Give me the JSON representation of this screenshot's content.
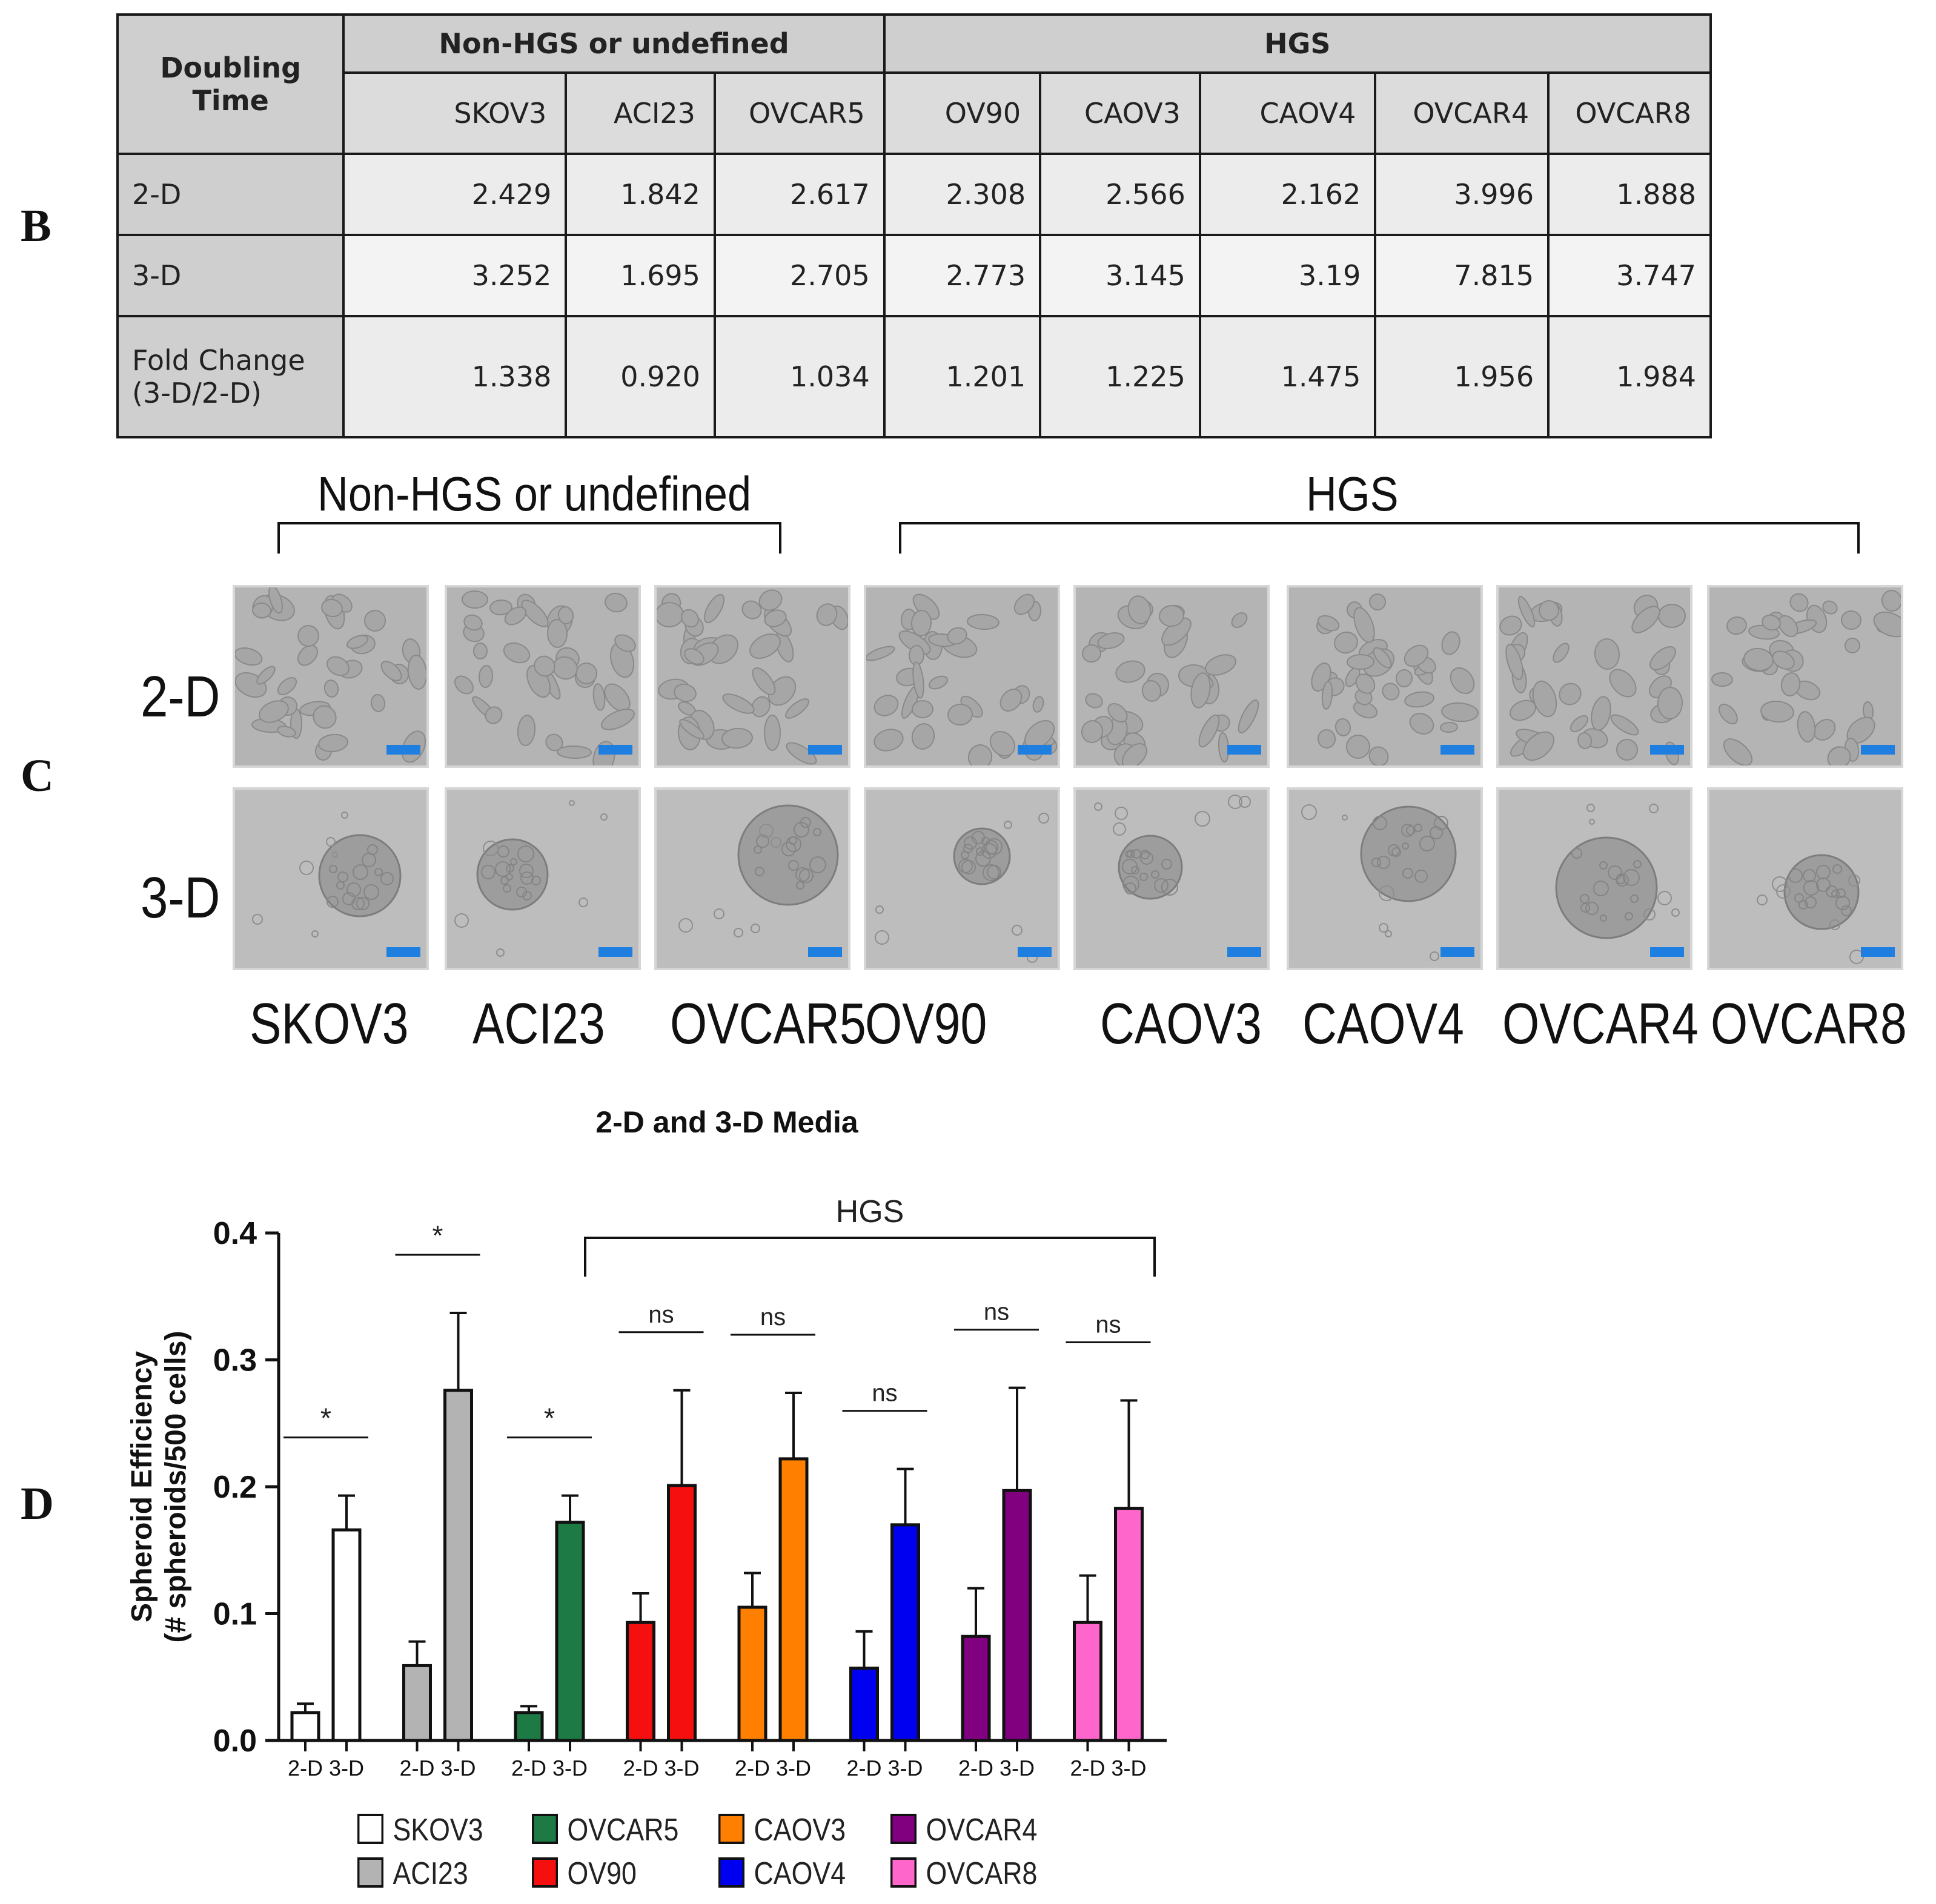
{
  "panel_labels": {
    "b": "B",
    "c": "C",
    "d": "D"
  },
  "table": {
    "corner": "Doubling Time",
    "group_headers": [
      "Non-HGS or undefined",
      "HGS"
    ],
    "columns": [
      "SKOV3",
      "ACI23",
      "OVCAR5",
      "OV90",
      "CAOV3",
      "CAOV4",
      "OVCAR4",
      "OVCAR8"
    ],
    "rows": [
      {
        "label": "2-D",
        "values": [
          "2.429",
          "1.842",
          "2.617",
          "2.308",
          "2.566",
          "2.162",
          "3.996",
          "1.888"
        ]
      },
      {
        "label": "3-D",
        "values": [
          "3.252",
          "1.695",
          "2.705",
          "2.773",
          "3.145",
          "3.19",
          "7.815",
          "3.747"
        ]
      },
      {
        "label_line1": "Fold Change",
        "label_line2": "(3-D/2-D)",
        "values": [
          "1.338",
          "0.920",
          "1.034",
          "1.201",
          "1.225",
          "1.475",
          "1.956",
          "1.984"
        ]
      }
    ]
  },
  "images": {
    "group_left": "Non-HGS or undefined",
    "group_right": "HGS",
    "row_2d": "2-D",
    "row_3d": "3-D",
    "cell_lines": [
      "SKOV3",
      "ACI23",
      "OVCAR5",
      "OV90",
      "CAOV3",
      "CAOV4",
      "OVCAR4",
      "OVCAR8"
    ],
    "scale_bar_color": "#1f7fe0"
  },
  "chart_data": {
    "type": "bar",
    "title": "2-D and 3-D Media",
    "ylabel_line1": "Spheroid Efficiency",
    "ylabel_line2": "(# spheroids/500 cells)",
    "ylim": [
      0.0,
      0.4
    ],
    "yticks": [
      "0.0",
      "0.1",
      "0.2",
      "0.3",
      "0.4"
    ],
    "ytick_values": [
      0.0,
      0.1,
      0.2,
      0.3,
      0.4
    ],
    "bar_labels": [
      "2-D",
      "3-D"
    ],
    "bracket_label": "HGS",
    "groups": [
      {
        "name": "SKOV3",
        "color": "#ffffff",
        "values": [
          0.022,
          0.166
        ],
        "errors": [
          0.007,
          0.027
        ],
        "sig": "*"
      },
      {
        "name": "ACI23",
        "color": "#b3b3b3",
        "values": [
          0.059,
          0.276
        ],
        "errors": [
          0.019,
          0.061
        ],
        "sig": "*"
      },
      {
        "name": "OVCAR5",
        "color": "#1e7a45",
        "values": [
          0.022,
          0.172
        ],
        "errors": [
          0.005,
          0.021
        ],
        "sig": "*"
      },
      {
        "name": "OV90",
        "color": "#f50f0f",
        "values": [
          0.093,
          0.201
        ],
        "errors": [
          0.023,
          0.075
        ],
        "sig": "ns"
      },
      {
        "name": "CAOV3",
        "color": "#ff7f00",
        "values": [
          0.105,
          0.222
        ],
        "errors": [
          0.027,
          0.052
        ],
        "sig": "ns"
      },
      {
        "name": "CAOV4",
        "color": "#0000f0",
        "values": [
          0.057,
          0.17
        ],
        "errors": [
          0.029,
          0.044
        ],
        "sig": "ns"
      },
      {
        "name": "OVCAR4",
        "color": "#800080",
        "values": [
          0.082,
          0.197
        ],
        "errors": [
          0.038,
          0.081
        ],
        "sig": "ns"
      },
      {
        "name": "OVCAR8",
        "color": "#ff66cc",
        "values": [
          0.093,
          0.183
        ],
        "errors": [
          0.037,
          0.085
        ],
        "sig": "ns"
      }
    ]
  }
}
